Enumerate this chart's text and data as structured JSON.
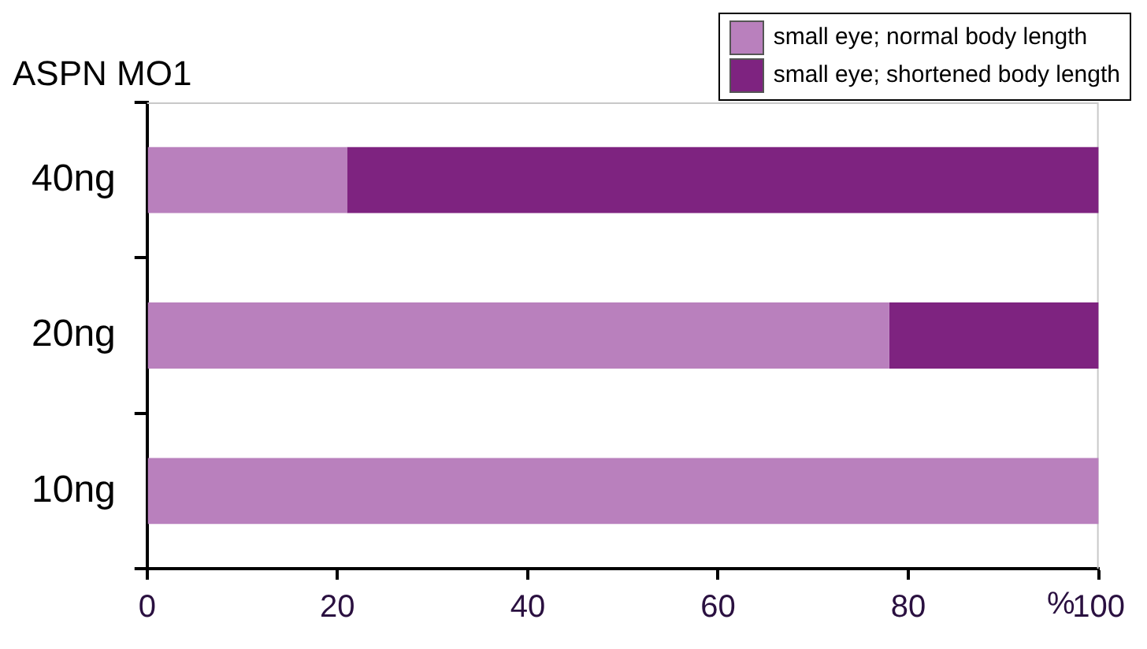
{
  "chart_data": {
    "type": "bar",
    "orientation": "horizontal",
    "stacked": true,
    "ylabel": "ASPN MO1",
    "xlabel": "%",
    "categories": [
      "40ng",
      "20ng",
      "10ng"
    ],
    "series": [
      {
        "name": "small eye; normal body length",
        "color": "#b980bd",
        "values": [
          21,
          78,
          100
        ]
      },
      {
        "name": "small eye; shortened body length",
        "color": "#7e2380",
        "values": [
          79,
          22,
          0
        ]
      }
    ],
    "xlim": [
      0,
      100
    ],
    "xticks": [
      0,
      20,
      40,
      60,
      80,
      100
    ],
    "grid": false,
    "legend": "top right"
  }
}
